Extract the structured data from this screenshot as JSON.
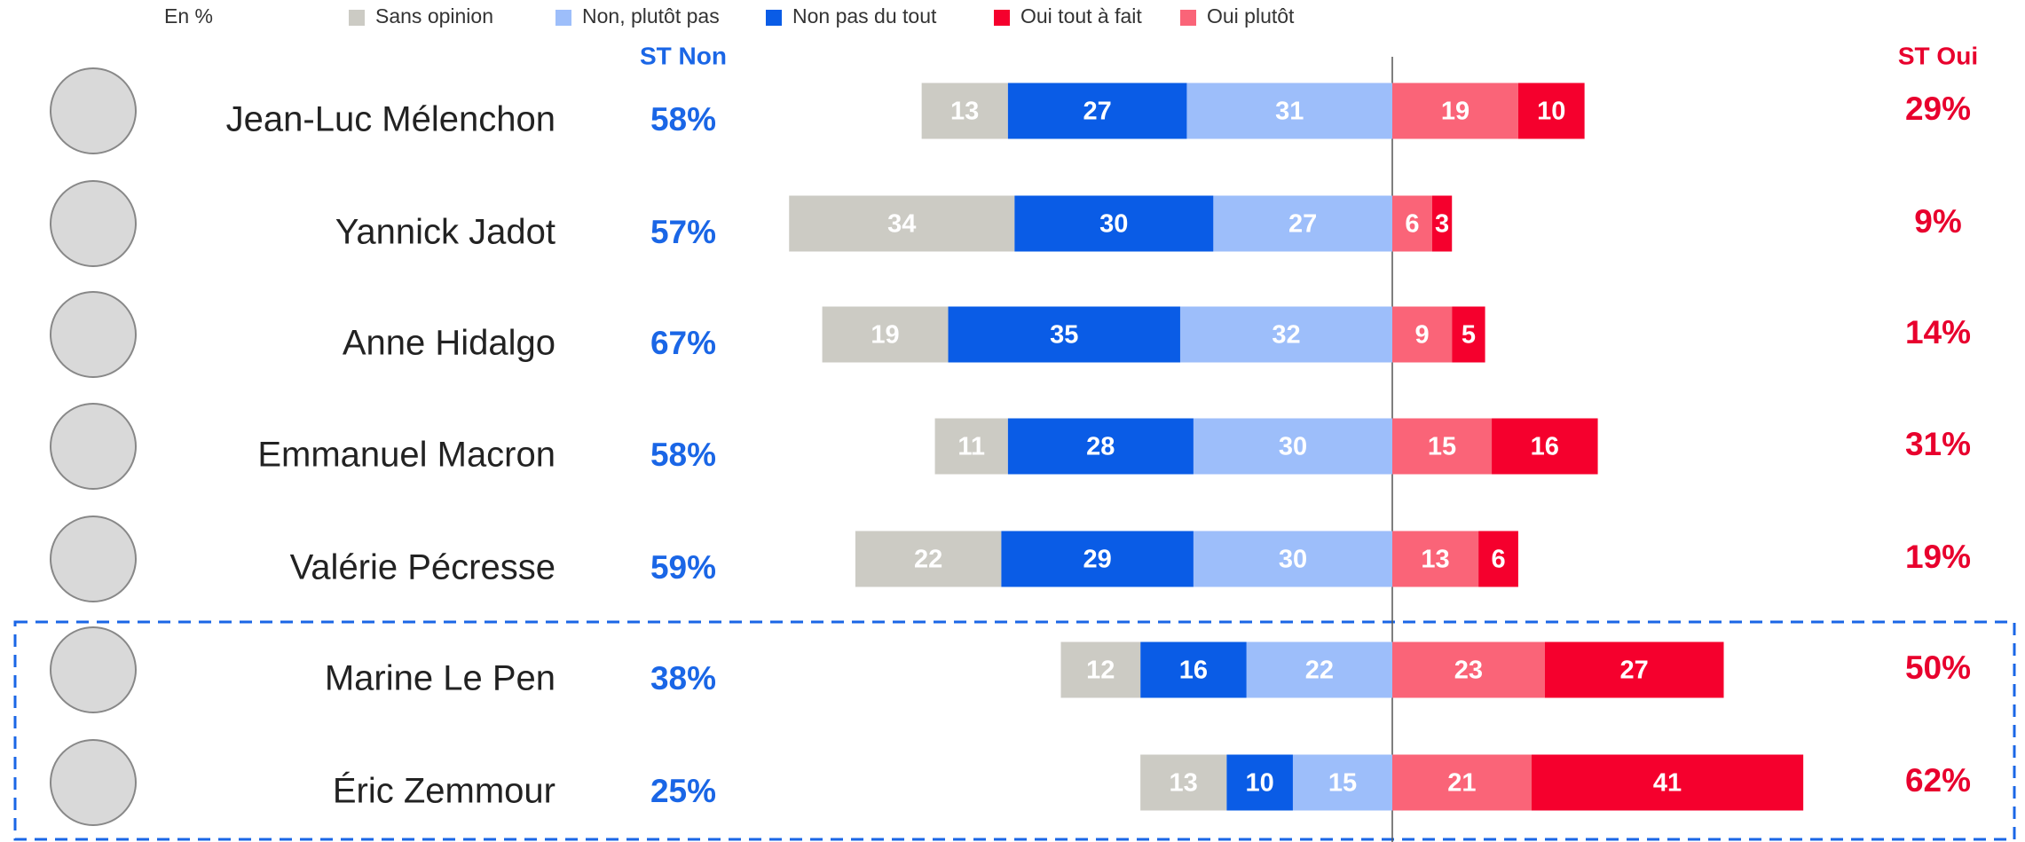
{
  "chart_data": {
    "type": "diverging_bar",
    "unit_note": "En %",
    "categories": [
      "Jean-Luc Mélenchon",
      "Yannick Jadot",
      "Anne Hidalgo",
      "Emmanuel Macron",
      "Valérie Pécresse",
      "Marine Le Pen",
      "Éric Zemmour"
    ],
    "series": [
      {
        "name": "Sans opinion",
        "color": "#cccbc4",
        "side": "left",
        "values": [
          13,
          34,
          19,
          11,
          22,
          12,
          13
        ]
      },
      {
        "name": "Non, plutôt pas",
        "color": "#9dbefa",
        "side": "left",
        "values": [
          31,
          27,
          32,
          30,
          30,
          22,
          15
        ]
      },
      {
        "name": "Non pas du tout",
        "color": "#0a5ce6",
        "side": "left",
        "values": [
          27,
          30,
          35,
          28,
          29,
          16,
          10
        ]
      },
      {
        "name": "Oui tout à fait",
        "color": "#f5002d",
        "side": "right",
        "values": [
          10,
          3,
          5,
          16,
          6,
          27,
          41
        ]
      },
      {
        "name": "Oui plutôt",
        "color": "#fa6478",
        "side": "right",
        "values": [
          19,
          6,
          9,
          15,
          13,
          23,
          21
        ]
      }
    ],
    "stack_order": {
      "left": [
        1,
        2,
        0
      ],
      "right": [
        4,
        3
      ]
    },
    "st_non": {
      "title": "ST Non",
      "color": "#1a66e6",
      "values": [
        58,
        57,
        67,
        58,
        59,
        38,
        25
      ],
      "value_labels": [
        "58%",
        "57%",
        "67%",
        "58%",
        "59%",
        "38%",
        "25%"
      ]
    },
    "st_oui": {
      "title": "ST Oui",
      "color": "#e8002d",
      "values": [
        29,
        9,
        14,
        31,
        19,
        50,
        62
      ],
      "value_labels": [
        "29%",
        "9%",
        "14%",
        "31%",
        "19%",
        "50%",
        "62%"
      ]
    }
  }
}
